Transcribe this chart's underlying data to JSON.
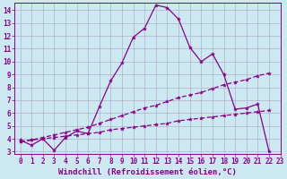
{
  "xlabel": "Windchill (Refroidissement éolien,°C)",
  "bg_color": "#cce8f0",
  "grid_color": "#b0b0cc",
  "line_color": "#880088",
  "xlim": [
    -0.5,
    23
  ],
  "ylim": [
    2.8,
    14.6
  ],
  "yticks": [
    3,
    4,
    5,
    6,
    7,
    8,
    9,
    10,
    11,
    12,
    13,
    14
  ],
  "xticks": [
    0,
    1,
    2,
    3,
    4,
    5,
    6,
    7,
    8,
    9,
    10,
    11,
    12,
    13,
    14,
    15,
    16,
    17,
    18,
    19,
    20,
    21,
    22,
    23
  ],
  "series1_x": [
    0,
    1,
    2,
    3,
    4,
    5,
    6,
    7,
    8,
    9,
    10,
    11,
    12,
    13,
    14,
    15,
    16,
    17,
    18,
    19,
    20,
    21,
    22
  ],
  "series1_y": [
    3.9,
    3.5,
    4.0,
    3.1,
    4.1,
    4.6,
    4.4,
    6.5,
    8.5,
    9.9,
    11.9,
    12.6,
    14.4,
    14.2,
    13.3,
    11.1,
    10.0,
    10.6,
    9.0,
    6.3,
    6.4,
    6.7,
    3.0
  ],
  "series2_x": [
    0,
    1,
    2,
    3,
    4,
    5,
    6,
    7,
    8,
    9,
    10,
    11,
    12,
    13,
    14,
    15,
    16,
    17,
    18,
    19,
    20,
    21,
    22
  ],
  "series2_y": [
    3.8,
    3.9,
    4.1,
    4.3,
    4.5,
    4.7,
    4.9,
    5.2,
    5.5,
    5.8,
    6.1,
    6.4,
    6.6,
    6.9,
    7.2,
    7.4,
    7.6,
    7.9,
    8.2,
    8.4,
    8.6,
    8.9,
    9.1
  ],
  "series3_x": [
    0,
    1,
    2,
    3,
    4,
    5,
    6,
    7,
    8,
    9,
    10,
    11,
    12,
    13,
    14,
    15,
    16,
    17,
    18,
    19,
    20,
    21,
    22
  ],
  "series3_y": [
    3.8,
    3.9,
    4.0,
    4.1,
    4.2,
    4.3,
    4.4,
    4.5,
    4.7,
    4.8,
    4.9,
    5.0,
    5.1,
    5.2,
    5.4,
    5.5,
    5.6,
    5.7,
    5.8,
    5.9,
    6.0,
    6.1,
    6.2
  ],
  "marker": "*",
  "markersize": 3,
  "linewidth": 0.9,
  "xlabel_fontsize": 6.5,
  "tick_fontsize": 5.5
}
